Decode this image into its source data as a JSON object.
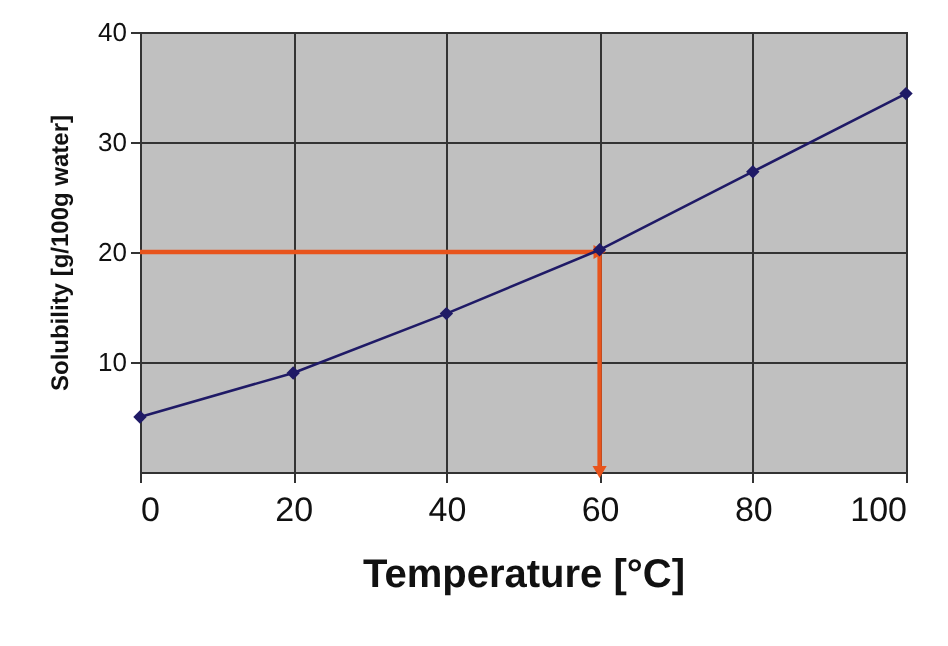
{
  "chart_data": {
    "type": "line",
    "xlabel": "Temperature [°C]",
    "ylabel": "Solubility [g/100g water]",
    "x": [
      0,
      20,
      40,
      60,
      80,
      100
    ],
    "series": [
      {
        "color": "#1f1a66",
        "values": [
          5,
          9,
          14.4,
          20.2,
          27.3,
          34.4
        ]
      }
    ],
    "xlim": [
      0,
      100
    ],
    "xticks": [
      0,
      20,
      40,
      60,
      80,
      100
    ],
    "ylim": [
      0,
      40
    ],
    "yticks": [
      10,
      20,
      30,
      40
    ],
    "grid": true,
    "marker": "diamond",
    "line_style": "solid",
    "ref_lines": [
      {
        "axis": "y",
        "value": 20,
        "color": "#e8541c"
      },
      {
        "axis": "x",
        "value": 60,
        "color": "#e8541c"
      }
    ]
  }
}
